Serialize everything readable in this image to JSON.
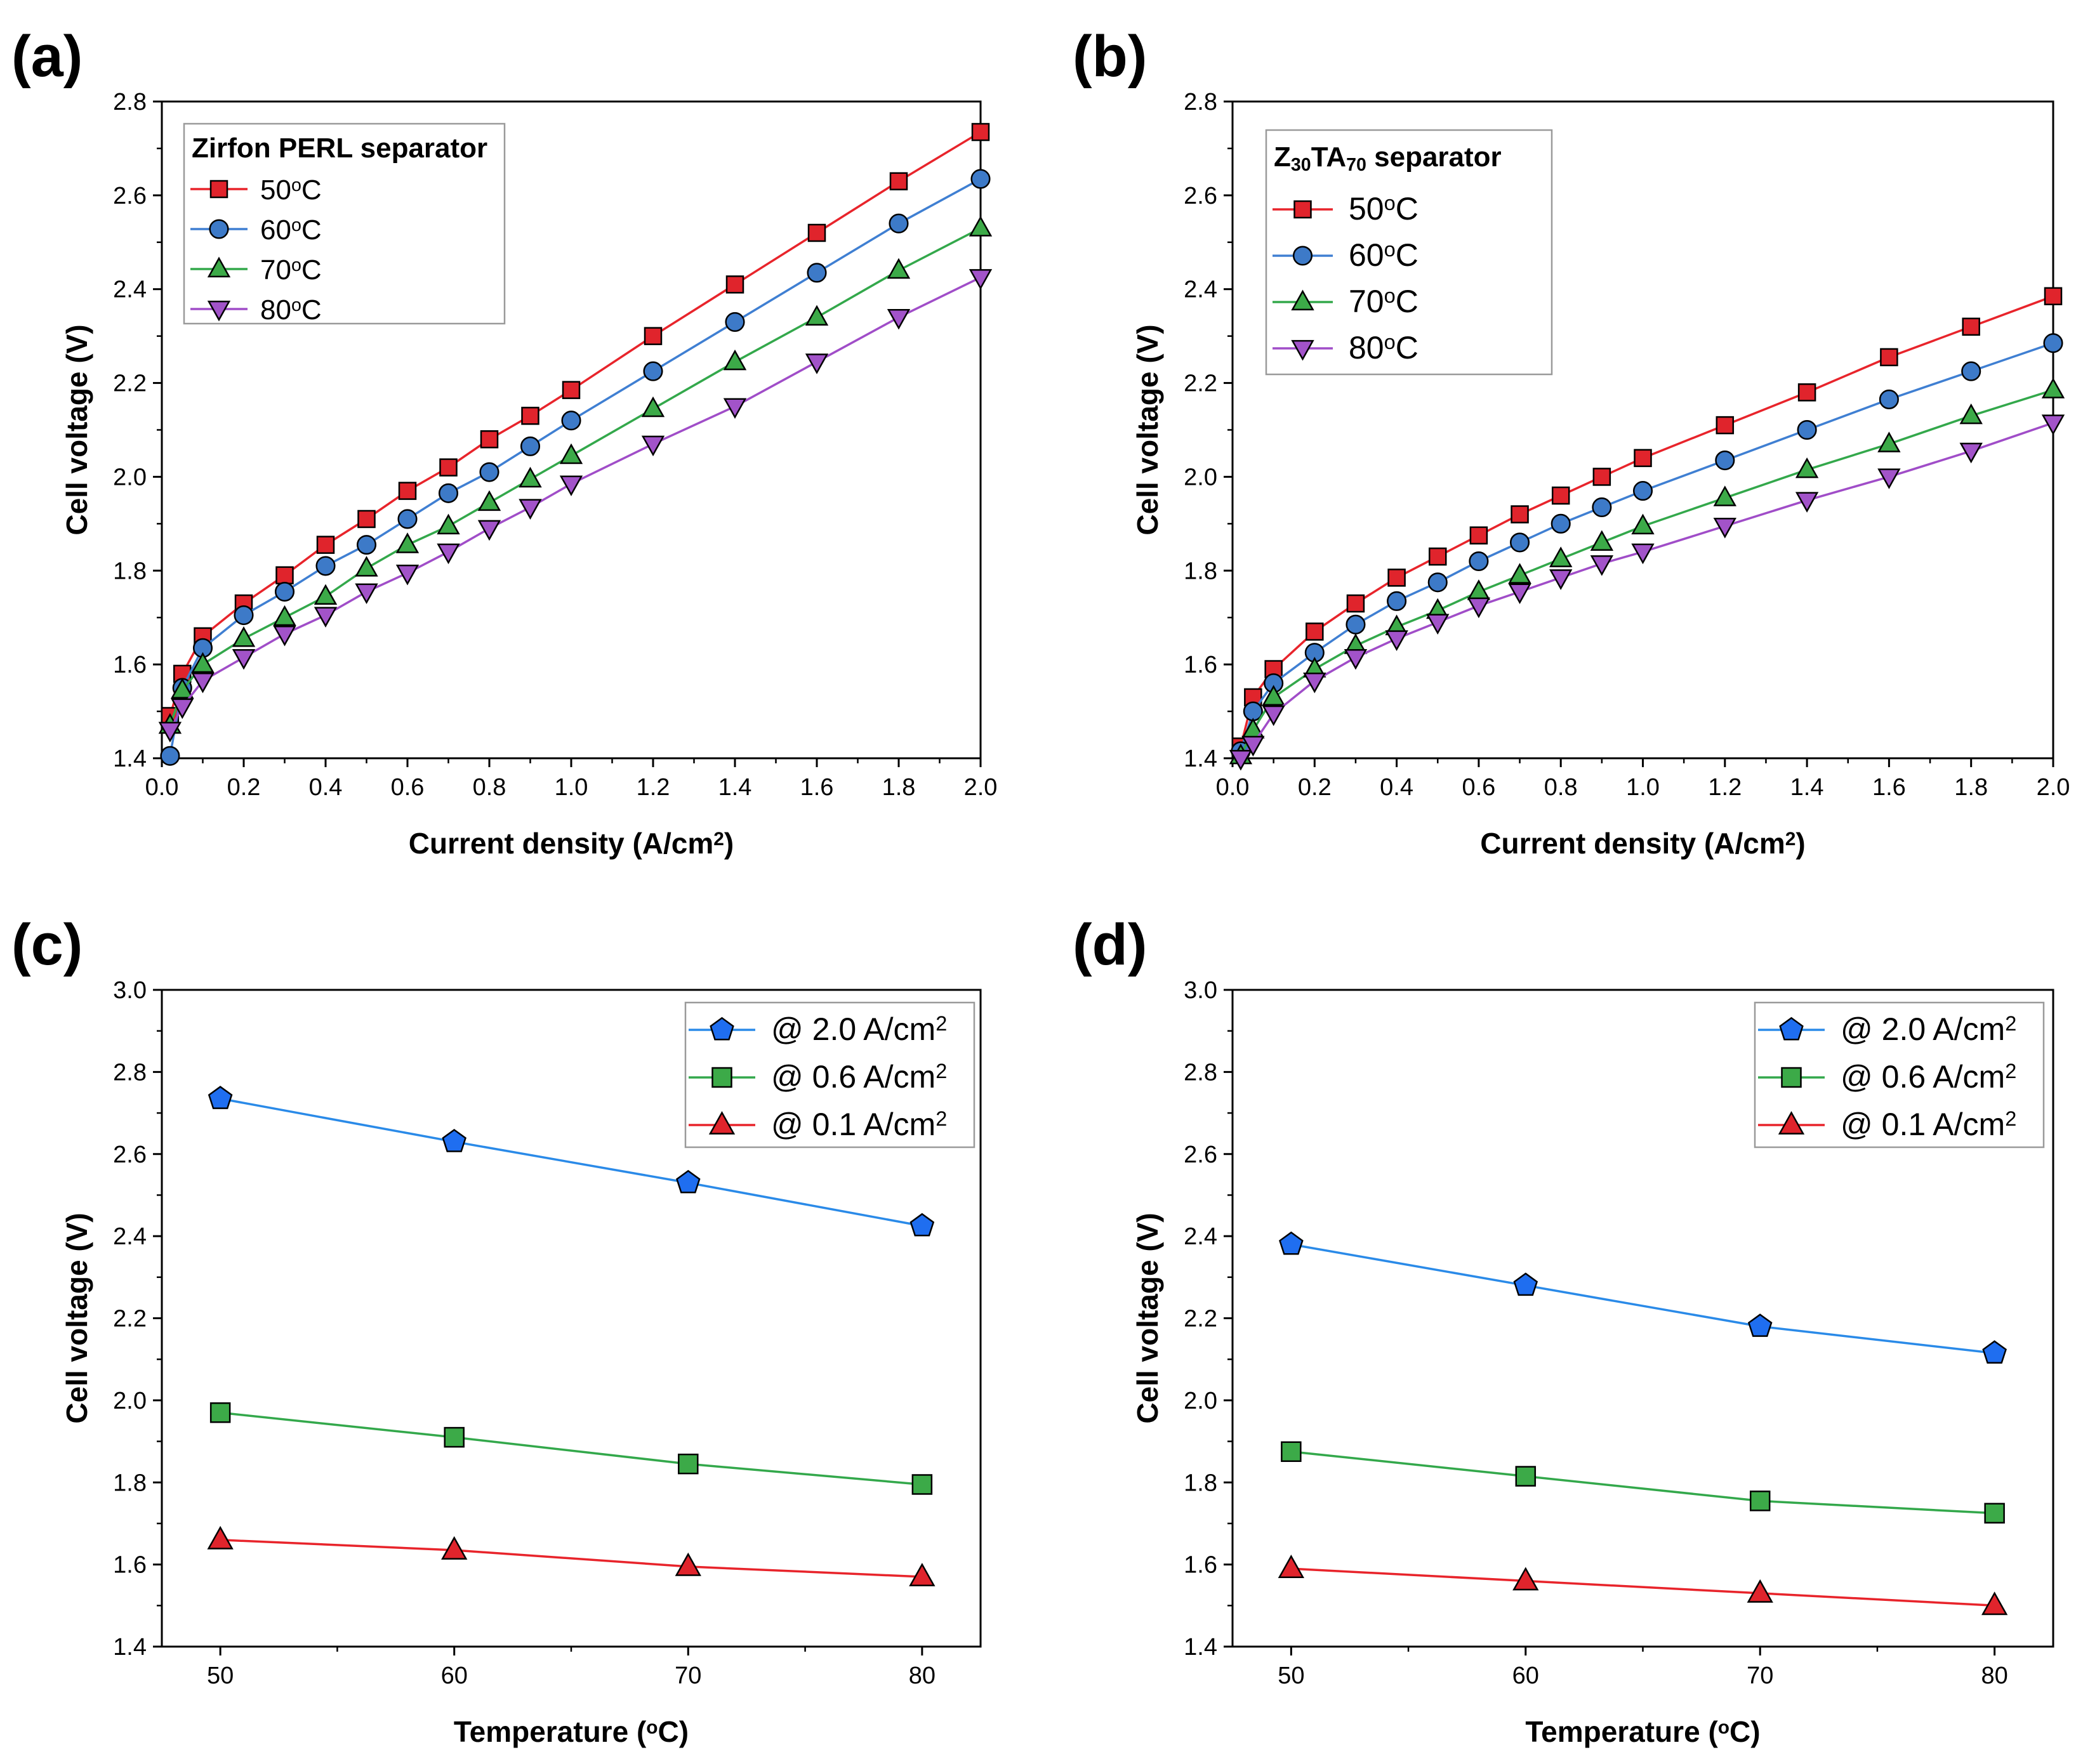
{
  "figure": {
    "colors": {
      "red": "#e8242b",
      "blue": "#3f7fd2",
      "green": "#33a84b",
      "purple": "#a04dc8",
      "marker_red": "#e0242c",
      "marker_blue": "#3d7ac8",
      "marker_green": "#3caa48",
      "marker_purple": "#a253c9",
      "pent_blue": "#1f6ef0",
      "line_blue": "#2a8ae8"
    }
  },
  "chart_data": [
    {
      "panel": "(a)",
      "type": "line",
      "xlabel": "Current density (A/cm2)",
      "xlabel_parts": [
        "Current density (A/cm",
        "2",
        ")"
      ],
      "ylabel": "Cell voltage (V)",
      "xlim": [
        0.0,
        2.0
      ],
      "ylim": [
        1.4,
        2.8
      ],
      "xticks": [
        "0.0",
        "0.2",
        "0.4",
        "0.6",
        "0.8",
        "1.0",
        "1.2",
        "1.4",
        "1.6",
        "1.8",
        "2.0"
      ],
      "yticks": [
        "1.4",
        "1.6",
        "1.8",
        "2.0",
        "2.2",
        "2.4",
        "2.6",
        "2.8"
      ],
      "legend_title": "Zirfon PERL separator",
      "x": [
        0.02,
        0.05,
        0.1,
        0.2,
        0.3,
        0.4,
        0.5,
        0.6,
        0.7,
        0.8,
        0.9,
        1.0,
        1.2,
        1.4,
        1.6,
        1.8,
        2.0
      ],
      "series": [
        {
          "name": "50ºC",
          "name_parts": [
            "50",
            "o",
            "C"
          ],
          "marker": "square",
          "color_key": "red",
          "marker_key": "marker_red",
          "values": [
            1.49,
            1.58,
            1.66,
            1.73,
            1.79,
            1.855,
            1.91,
            1.97,
            2.02,
            2.08,
            2.13,
            2.185,
            2.3,
            2.41,
            2.52,
            2.63,
            2.735
          ]
        },
        {
          "name": "60ºC",
          "name_parts": [
            "60",
            "o",
            "C"
          ],
          "marker": "circle",
          "color_key": "blue",
          "marker_key": "marker_blue",
          "values": [
            1.405,
            1.55,
            1.635,
            1.705,
            1.755,
            1.81,
            1.855,
            1.91,
            1.965,
            2.01,
            2.065,
            2.12,
            2.225,
            2.33,
            2.435,
            2.54,
            2.635
          ]
        },
        {
          "name": "70ºC",
          "name_parts": [
            "70",
            "o",
            "C"
          ],
          "marker": "triangle-up",
          "color_key": "green",
          "marker_key": "marker_green",
          "values": [
            1.47,
            1.545,
            1.6,
            1.655,
            1.7,
            1.745,
            1.805,
            1.855,
            1.895,
            1.945,
            1.995,
            2.045,
            2.145,
            2.245,
            2.34,
            2.44,
            2.53
          ]
        },
        {
          "name": "80ºC",
          "name_parts": [
            "80",
            "o",
            "C"
          ],
          "marker": "triangle-down",
          "color_key": "purple",
          "marker_key": "marker_purple",
          "values": [
            1.46,
            1.51,
            1.565,
            1.615,
            1.665,
            1.705,
            1.755,
            1.795,
            1.84,
            1.89,
            1.935,
            1.985,
            2.07,
            2.15,
            2.245,
            2.34,
            2.425
          ]
        }
      ]
    },
    {
      "panel": "(b)",
      "type": "line",
      "xlabel": "Current density (A/cm2)",
      "xlabel_parts": [
        "Current density (A/cm",
        "2",
        ")"
      ],
      "ylabel": "Cell voltage (V)",
      "xlim": [
        0.0,
        2.0
      ],
      "ylim": [
        1.4,
        2.8
      ],
      "xticks": [
        "0.0",
        "0.2",
        "0.4",
        "0.6",
        "0.8",
        "1.0",
        "1.2",
        "1.4",
        "1.6",
        "1.8",
        "2.0"
      ],
      "yticks": [
        "1.4",
        "1.6",
        "1.8",
        "2.0",
        "2.2",
        "2.4",
        "2.6",
        "2.8"
      ],
      "legend_title": "Z30TA70 separator",
      "legend_title_parts": [
        "Z",
        "30",
        "TA",
        "70",
        " separator"
      ],
      "x": [
        0.02,
        0.05,
        0.1,
        0.2,
        0.3,
        0.4,
        0.5,
        0.6,
        0.7,
        0.8,
        0.9,
        1.0,
        1.2,
        1.4,
        1.6,
        1.8,
        2.0
      ],
      "series": [
        {
          "name": "50ºC",
          "name_parts": [
            "50",
            "o",
            "C"
          ],
          "marker": "square",
          "color_key": "red",
          "marker_key": "marker_red",
          "values": [
            1.425,
            1.53,
            1.59,
            1.67,
            1.73,
            1.785,
            1.83,
            1.875,
            1.92,
            1.96,
            2.0,
            2.04,
            2.11,
            2.18,
            2.255,
            2.32,
            2.385
          ]
        },
        {
          "name": "60ºC",
          "name_parts": [
            "60",
            "o",
            "C"
          ],
          "marker": "circle",
          "color_key": "blue",
          "marker_key": "marker_blue",
          "values": [
            1.415,
            1.5,
            1.56,
            1.625,
            1.685,
            1.735,
            1.775,
            1.82,
            1.86,
            1.9,
            1.935,
            1.97,
            2.035,
            2.1,
            2.165,
            2.225,
            2.285
          ]
        },
        {
          "name": "70ºC",
          "name_parts": [
            "70",
            "o",
            "C"
          ],
          "marker": "triangle-up",
          "color_key": "green",
          "marker_key": "marker_green",
          "values": [
            1.405,
            1.46,
            1.53,
            1.59,
            1.64,
            1.68,
            1.715,
            1.755,
            1.79,
            1.825,
            1.86,
            1.895,
            1.955,
            2.015,
            2.07,
            2.13,
            2.185
          ]
        },
        {
          "name": "80ºC",
          "name_parts": [
            "80",
            "o",
            "C"
          ],
          "marker": "triangle-down",
          "color_key": "purple",
          "marker_key": "marker_purple",
          "values": [
            1.4,
            1.43,
            1.495,
            1.565,
            1.615,
            1.655,
            1.69,
            1.725,
            1.755,
            1.785,
            1.815,
            1.84,
            1.895,
            1.95,
            2.0,
            2.055,
            2.115
          ]
        }
      ]
    },
    {
      "panel": "(c)",
      "type": "line",
      "xlabel": "Temperature (ºC)",
      "xlabel_parts": [
        "Temperature (",
        "o",
        "C)"
      ],
      "ylabel": "Cell voltage (V)",
      "xlim": [
        47.5,
        82.5
      ],
      "ylim": [
        1.4,
        3.0
      ],
      "xticks": [
        "50",
        "60",
        "70",
        "80"
      ],
      "yticks": [
        "1.4",
        "1.6",
        "1.8",
        "2.0",
        "2.2",
        "2.4",
        "2.6",
        "2.8",
        "3.0"
      ],
      "x": [
        50,
        60,
        70,
        80
      ],
      "series": [
        {
          "name": "@ 2.0 A/cm2",
          "name_parts": [
            "@ 2.0 A/cm",
            "2"
          ],
          "marker": "pentagon",
          "color_key": "line_blue",
          "marker_key": "pent_blue",
          "values": [
            2.735,
            2.63,
            2.53,
            2.425
          ]
        },
        {
          "name": "@ 0.6 A/cm2",
          "name_parts": [
            "@ 0.6 A/cm",
            "2"
          ],
          "marker": "square",
          "color_key": "green",
          "marker_key": "marker_green",
          "values": [
            1.97,
            1.91,
            1.845,
            1.795
          ]
        },
        {
          "name": "@ 0.1 A/cm2",
          "name_parts": [
            "@ 0.1 A/cm",
            "2"
          ],
          "marker": "triangle-up",
          "color_key": "red",
          "marker_key": "marker_red",
          "values": [
            1.66,
            1.635,
            1.595,
            1.57
          ]
        }
      ]
    },
    {
      "panel": "(d)",
      "type": "line",
      "xlabel": "Temperature (ºC)",
      "xlabel_parts": [
        "Temperature (",
        "o",
        "C)"
      ],
      "ylabel": "Cell voltage (V)",
      "xlim": [
        47.5,
        82.5
      ],
      "ylim": [
        1.4,
        3.0
      ],
      "xticks": [
        "50",
        "60",
        "70",
        "80"
      ],
      "yticks": [
        "1.4",
        "1.6",
        "1.8",
        "2.0",
        "2.2",
        "2.4",
        "2.6",
        "2.8",
        "3.0"
      ],
      "x": [
        50,
        60,
        70,
        80
      ],
      "series": [
        {
          "name": "@ 2.0 A/cm2",
          "name_parts": [
            "@ 2.0 A/cm",
            "2"
          ],
          "marker": "pentagon",
          "color_key": "line_blue",
          "marker_key": "pent_blue",
          "values": [
            2.38,
            2.28,
            2.18,
            2.115
          ]
        },
        {
          "name": "@ 0.6 A/cm2",
          "name_parts": [
            "@ 0.6 A/cm",
            "2"
          ],
          "marker": "square",
          "color_key": "green",
          "marker_key": "marker_green",
          "values": [
            1.875,
            1.815,
            1.755,
            1.725
          ]
        },
        {
          "name": "@ 0.1 A/cm2",
          "name_parts": [
            "@ 0.1 A/cm",
            "2"
          ],
          "marker": "triangle-up",
          "color_key": "red",
          "marker_key": "marker_red",
          "values": [
            1.59,
            1.56,
            1.53,
            1.5
          ]
        }
      ]
    }
  ]
}
